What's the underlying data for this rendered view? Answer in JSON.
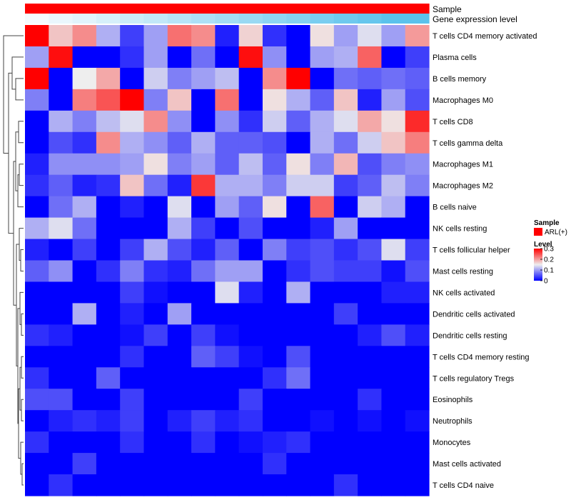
{
  "chart_data": {
    "type": "heatmap",
    "title": "",
    "rows": [
      "T cells CD4 memory activated",
      "Plasma cells",
      "B cells memory",
      "Macrophages M0",
      "T cells CD8",
      "T cells gamma delta",
      "Macrophages M1",
      "Macrophages M2",
      "B cells naive",
      "NK cells resting",
      "T cells follicular helper",
      "Mast cells resting",
      "NK cells activated",
      "Dendritic cells activated",
      "Dendritic cells resting",
      "T cells CD4 memory resting",
      "T cells regulatory  Tregs",
      "Eosinophils",
      "Neutrophils",
      "Monocytes",
      "Mast cells activated",
      "T cells CD4 naive"
    ],
    "n_columns": 17,
    "values": [
      [
        0.32,
        0.18,
        0.22,
        0.11,
        0.04,
        0.1,
        0.24,
        0.22,
        0.02,
        0.17,
        0.03,
        0.0,
        0.16,
        0.1,
        0.14,
        0.1,
        0.21
      ],
      [
        0.1,
        0.31,
        0.0,
        0.0,
        0.03,
        0.1,
        0.0,
        0.07,
        0.0,
        0.31,
        0.09,
        0.0,
        0.1,
        0.11,
        0.25,
        0.0,
        0.04
      ],
      [
        0.32,
        0.0,
        0.15,
        0.2,
        0.0,
        0.13,
        0.08,
        0.1,
        0.12,
        0.0,
        0.22,
        0.32,
        0.0,
        0.07,
        0.06,
        0.07,
        0.06
      ],
      [
        0.08,
        0.0,
        0.23,
        0.26,
        0.32,
        0.08,
        0.18,
        0.0,
        0.24,
        0.0,
        0.16,
        0.11,
        0.06,
        0.18,
        0.02,
        0.1,
        0.05
      ],
      [
        0.0,
        0.11,
        0.08,
        0.12,
        0.14,
        0.22,
        0.09,
        0.0,
        0.09,
        0.03,
        0.13,
        0.06,
        0.11,
        0.14,
        0.2,
        0.16,
        0.29
      ],
      [
        0.0,
        0.05,
        0.03,
        0.22,
        0.11,
        0.09,
        0.06,
        0.11,
        0.06,
        0.06,
        0.05,
        0.0,
        0.11,
        0.07,
        0.13,
        0.18,
        0.23
      ],
      [
        0.02,
        0.09,
        0.09,
        0.09,
        0.1,
        0.16,
        0.08,
        0.1,
        0.06,
        0.12,
        0.06,
        0.16,
        0.08,
        0.19,
        0.05,
        0.08,
        0.09
      ],
      [
        0.03,
        0.06,
        0.02,
        0.03,
        0.18,
        0.07,
        0.02,
        0.28,
        0.11,
        0.11,
        0.08,
        0.13,
        0.13,
        0.04,
        0.06,
        0.12,
        0.08
      ],
      [
        0.0,
        0.07,
        0.11,
        0.0,
        0.02,
        0.0,
        0.14,
        0.0,
        0.1,
        0.06,
        0.16,
        0.0,
        0.25,
        0.0,
        0.13,
        0.11,
        0.0
      ],
      [
        0.11,
        0.14,
        0.07,
        0.0,
        0.0,
        0.0,
        0.11,
        0.04,
        0.0,
        0.05,
        0.0,
        0.0,
        0.02,
        0.1,
        0.0,
        0.0,
        0.0
      ],
      [
        0.02,
        0.0,
        0.04,
        0.0,
        0.04,
        0.11,
        0.05,
        0.02,
        0.06,
        0.0,
        0.08,
        0.04,
        0.05,
        0.03,
        0.05,
        0.14,
        0.04
      ],
      [
        0.06,
        0.09,
        0.0,
        0.03,
        0.08,
        0.03,
        0.02,
        0.07,
        0.1,
        0.1,
        0.0,
        0.03,
        0.05,
        0.04,
        0.04,
        0.01,
        0.05
      ],
      [
        0.0,
        0.0,
        0.0,
        0.0,
        0.04,
        0.01,
        0.0,
        0.0,
        0.14,
        0.02,
        0.0,
        0.11,
        0.0,
        0.0,
        0.0,
        0.02,
        0.02
      ],
      [
        0.0,
        0.0,
        0.11,
        0.0,
        0.02,
        0.0,
        0.1,
        0.0,
        0.0,
        0.0,
        0.0,
        0.0,
        0.0,
        0.04,
        0.0,
        0.0,
        0.0
      ],
      [
        0.03,
        0.02,
        0.0,
        0.0,
        0.01,
        0.04,
        0.0,
        0.04,
        0.01,
        0.0,
        0.0,
        0.0,
        0.0,
        0.0,
        0.02,
        0.05,
        0.02
      ],
      [
        0.0,
        0.0,
        0.0,
        0.0,
        0.03,
        0.0,
        0.0,
        0.06,
        0.04,
        0.01,
        0.0,
        0.05,
        0.0,
        0.0,
        0.0,
        0.0,
        0.0
      ],
      [
        0.03,
        0.0,
        0.0,
        0.06,
        0.0,
        0.0,
        0.0,
        0.0,
        0.0,
        0.0,
        0.03,
        0.07,
        0.0,
        0.0,
        0.0,
        0.0,
        0.0
      ],
      [
        0.05,
        0.05,
        0.0,
        0.0,
        0.04,
        0.0,
        0.0,
        0.0,
        0.0,
        0.04,
        0.0,
        0.0,
        0.0,
        0.0,
        0.03,
        0.0,
        0.0
      ],
      [
        0.0,
        0.02,
        0.03,
        0.02,
        0.04,
        0.0,
        0.02,
        0.04,
        0.02,
        0.03,
        0.0,
        0.0,
        0.01,
        0.0,
        0.01,
        0.0,
        0.01
      ],
      [
        0.03,
        0.0,
        0.0,
        0.0,
        0.03,
        0.0,
        0.0,
        0.03,
        0.0,
        0.01,
        0.02,
        0.03,
        0.0,
        0.0,
        0.0,
        0.0,
        0.0
      ],
      [
        0.0,
        0.0,
        0.04,
        0.0,
        0.0,
        0.0,
        0.0,
        0.0,
        0.0,
        0.0,
        0.03,
        0.0,
        0.0,
        0.0,
        0.0,
        0.0,
        0.0
      ],
      [
        0.0,
        0.03,
        0.0,
        0.0,
        0.0,
        0.0,
        0.0,
        0.0,
        0.0,
        0.0,
        0.0,
        0.0,
        0.0,
        0.03,
        0.0,
        0.0,
        0.0
      ]
    ],
    "color_scale": {
      "min": 0,
      "mid": 0.15,
      "max": 0.32,
      "low_color": "#0000ff",
      "mid_color": "#eeeeee",
      "high_color": "#ff0000"
    },
    "annotations": [
      {
        "name": "Sample",
        "color": "#ff0000",
        "values": [
          "ARL(+)",
          "ARL(+)",
          "ARL(+)",
          "ARL(+)",
          "ARL(+)",
          "ARL(+)",
          "ARL(+)",
          "ARL(+)",
          "ARL(+)",
          "ARL(+)",
          "ARL(+)",
          "ARL(+)",
          "ARL(+)",
          "ARL(+)",
          "ARL(+)",
          "ARL(+)",
          "ARL(+)"
        ]
      },
      {
        "name": "Gene expression level",
        "values": [
          0.0,
          0.07,
          0.13,
          0.2,
          0.27,
          0.33,
          0.4,
          0.47,
          0.53,
          0.6,
          0.67,
          0.73,
          0.8,
          0.87,
          0.93,
          1.0,
          1.0
        ],
        "low_color": "#f5fbfe",
        "high_color": "#5bc2ec"
      }
    ],
    "legends": {
      "sample": {
        "title": "Sample",
        "entries": [
          {
            "label": "ARL(+)",
            "color": "#ff0000"
          }
        ]
      },
      "level": {
        "title": "Level",
        "ticks": [
          0.3,
          0.2,
          0.1,
          0
        ]
      }
    },
    "row_dendrogram": true,
    "column_dendrogram": false
  }
}
